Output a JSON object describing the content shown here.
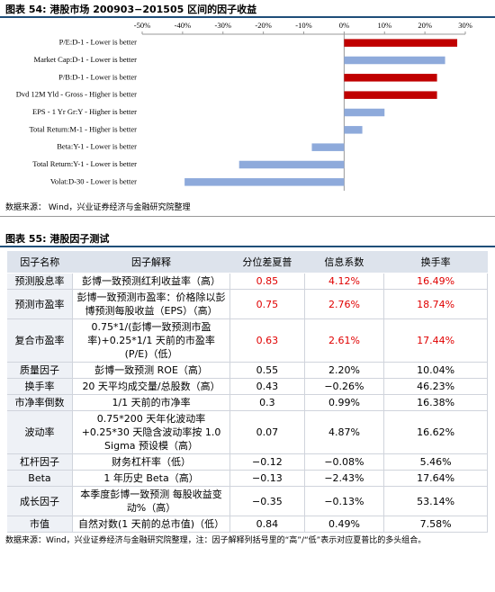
{
  "figure54": {
    "title": "图表 54: 港股市场 200903−201505 区间的因子收益",
    "chart_data": {
      "type": "hbar",
      "categories": [
        "P/E:D-1 - Lower is better",
        "Market Cap:D-1 - Lower is better",
        "P/B:D-1 - Lower is better",
        "Dvd 12M Yld - Gross - Higher is better",
        "EPS - 1 Yr Gr:Y - Higher is better",
        "Total Return:M-1 - Higher is better",
        "Beta:Y-1 - Lower is better",
        "Total Return:Y-1 - Lower is better",
        "Volat:D-30 - Lower is better"
      ],
      "values": [
        28,
        25,
        23,
        23,
        10,
        4.5,
        -8,
        -26,
        -39.5
      ],
      "colors": [
        "#c00000",
        "#8eaadb",
        "#c00000",
        "#c00000",
        "#8eaadb",
        "#8eaadb",
        "#8eaadb",
        "#8eaadb",
        "#8eaadb"
      ],
      "xlim": [
        -50,
        30
      ],
      "xticks": [
        {
          "value": -50,
          "label": "-50%"
        },
        {
          "value": -40,
          "label": "-40%"
        },
        {
          "value": -30,
          "label": "-30%"
        },
        {
          "value": -20,
          "label": "-20%"
        },
        {
          "value": -10,
          "label": "-10%"
        },
        {
          "value": 0,
          "label": "0%"
        },
        {
          "value": 10,
          "label": "10%"
        },
        {
          "value": 20,
          "label": "20%"
        },
        {
          "value": 30,
          "label": "30%"
        }
      ]
    },
    "source": "数据来源： Wind，兴业证券经济与金融研究院整理"
  },
  "figure55": {
    "title": "图表 55: 港股因子测试",
    "table": {
      "header": [
        "因子名称",
        "因子解释",
        "分位差夏普",
        "信息系数",
        "换手率"
      ],
      "rows": [
        [
          "预测股息率",
          "彭博一致预测红利收益率（高）",
          "0.85",
          "4.12%",
          "16.49%"
        ],
        [
          "预测市盈率",
          "彭博一致预测市盈率：价格除以彭博预测每股收益（EPS）（高）",
          "0.75",
          "2.76%",
          "18.74%"
        ],
        [
          "复合市盈率",
          "0.75*1/(彭博一致预测市盈率)+0.25*1/1 天前的市盈率(P/E)（低）",
          "0.63",
          "2.61%",
          "17.44%"
        ],
        [
          "质量因子",
          "彭博一致预测 ROE（高）",
          "0.55",
          "2.20%",
          "10.04%"
        ],
        [
          "换手率",
          "20 天平均成交量/总股数（高）",
          "0.43",
          "−0.26%",
          "46.23%"
        ],
        [
          "市净率倒数",
          "1/1 天前的市净率",
          "0.3",
          "0.99%",
          "16.38%"
        ],
        [
          "波动率",
          "0.75*200 天年化波动率+0.25*30 天隐含波动率按 1.0 Sigma 预设模（高）",
          "0.07",
          "4.87%",
          "16.62%"
        ],
        [
          "杠杆因子",
          "财务杠杆率（低）",
          "−0.12",
          "−0.08%",
          "5.46%"
        ],
        [
          "Beta",
          "1 年历史 Beta（高）",
          "−0.13",
          "−2.43%",
          "17.64%"
        ],
        [
          "成长因子",
          "本季度彭博一致预测 每股收益变动%（高）",
          "−0.35",
          "−0.13%",
          "53.14%"
        ],
        [
          "市值",
          "自然对数(1 天前的总市值)（低）",
          "0.84",
          "0.49%",
          "7.58%"
        ]
      ]
    },
    "note": "数据来源：Wind，兴业证券经济与金融研究院整理，注：因子解释列括号里的“高”/“低”表示对应夏普比的多头组合。"
  }
}
